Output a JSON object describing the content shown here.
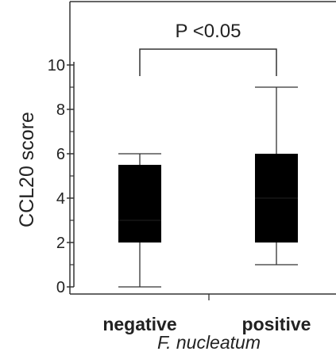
{
  "chart_data": {
    "type": "box",
    "categories": [
      "negative",
      "positive"
    ],
    "xlabel": "F. nucleatum",
    "ylabel": "CCL20 score",
    "ylim": [
      0,
      10
    ],
    "yticks_major": [
      0,
      2,
      4,
      6,
      8,
      10
    ],
    "yticks_minor": [
      1,
      3,
      5,
      7,
      9
    ],
    "boxes": [
      {
        "category": "negative",
        "min": 0,
        "q1": 2,
        "median": 3,
        "q3": 5.5,
        "max": 6
      },
      {
        "category": "positive",
        "min": 1,
        "q1": 2,
        "median": 4,
        "q3": 6,
        "max": 9
      }
    ],
    "annotation": "P <0.05",
    "colors": {
      "box_fill": "#000000",
      "line": "#333333",
      "median": "#444444"
    }
  }
}
